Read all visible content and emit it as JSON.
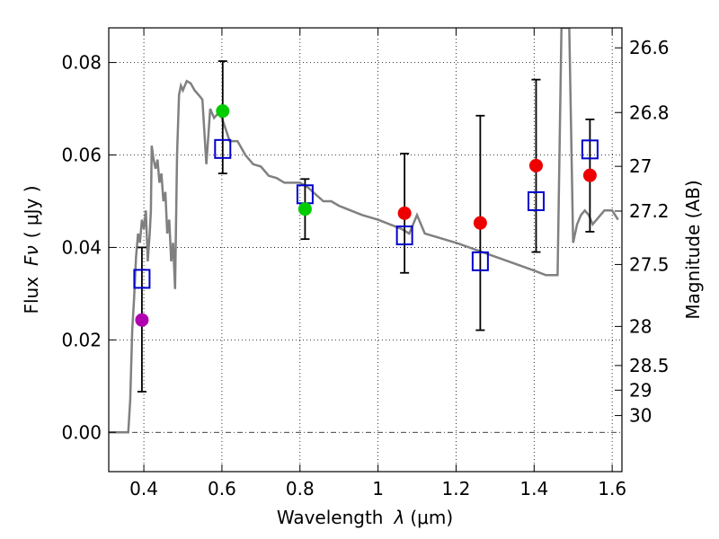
{
  "chart_data": {
    "type": "scatter",
    "xlabel_prefix": "Wavelength",
    "xlabel_lambda": "λ",
    "xlabel_unit": "(μm)",
    "ylabel_prefix": "Flux",
    "ylabel_symbol": "Fν",
    "ylabel_unit": "( μJy )",
    "y2label": "Magnitude (AB)",
    "xlim": [
      0.31,
      1.625
    ],
    "ylim": [
      -0.0085,
      0.0875
    ],
    "x_ticks": [
      {
        "value": 0.4,
        "label": "0.4"
      },
      {
        "value": 0.6,
        "label": "0.6"
      },
      {
        "value": 0.8,
        "label": "0.8"
      },
      {
        "value": 1.0,
        "label": "1"
      },
      {
        "value": 1.2,
        "label": "1.2"
      },
      {
        "value": 1.4,
        "label": "1.4"
      },
      {
        "value": 1.6,
        "label": "1.6"
      }
    ],
    "y_ticks": [
      {
        "value": 0.0,
        "label": "0.00"
      },
      {
        "value": 0.02,
        "label": "0.02"
      },
      {
        "value": 0.04,
        "label": "0.04"
      },
      {
        "value": 0.06,
        "label": "0.06"
      },
      {
        "value": 0.08,
        "label": "0.08"
      }
    ],
    "mag_ticks": [
      {
        "mag": 26.6,
        "label": "26.6"
      },
      {
        "mag": 26.8,
        "label": "26.8"
      },
      {
        "mag": 27.0,
        "label": "27"
      },
      {
        "mag": 27.2,
        "label": "27.2"
      },
      {
        "mag": 27.5,
        "label": "27.5"
      },
      {
        "mag": 28.0,
        "label": "28"
      },
      {
        "mag": 28.5,
        "label": "28.5"
      },
      {
        "mag": 29.0,
        "label": "29"
      },
      {
        "mag": 30.0,
        "label": "30"
      }
    ],
    "colors": {
      "sed": "#808080",
      "model": "#0000cc",
      "purple": "#b000b0",
      "green": "#00cc00",
      "red": "#ee0000"
    },
    "observed": [
      {
        "x": 0.395,
        "y": 0.0243,
        "err_low": 0.0088,
        "err_high": 0.04,
        "color": "purple"
      },
      {
        "x": 0.602,
        "y": 0.0695,
        "err_low": 0.056,
        "err_high": 0.0803,
        "color": "green"
      },
      {
        "x": 0.813,
        "y": 0.0483,
        "err_low": 0.0418,
        "err_high": 0.0548,
        "color": "green"
      },
      {
        "x": 1.068,
        "y": 0.0474,
        "err_low": 0.0345,
        "err_high": 0.0603,
        "color": "red"
      },
      {
        "x": 1.262,
        "y": 0.0453,
        "err_low": 0.0221,
        "err_high": 0.0685,
        "color": "red"
      },
      {
        "x": 1.405,
        "y": 0.0577,
        "err_low": 0.039,
        "err_high": 0.0763,
        "color": "red"
      },
      {
        "x": 1.543,
        "y": 0.0556,
        "err_low": 0.0434,
        "err_high": 0.0677,
        "color": "red"
      }
    ],
    "model_points": [
      {
        "x": 0.395,
        "y": 0.0332
      },
      {
        "x": 0.602,
        "y": 0.0613
      },
      {
        "x": 0.813,
        "y": 0.0515
      },
      {
        "x": 1.068,
        "y": 0.0426
      },
      {
        "x": 1.262,
        "y": 0.037
      },
      {
        "x": 1.405,
        "y": 0.05
      },
      {
        "x": 1.543,
        "y": 0.0612
      }
    ],
    "sed": {
      "x": [
        0.31,
        0.36,
        0.365,
        0.37,
        0.375,
        0.38,
        0.385,
        0.39,
        0.395,
        0.4,
        0.405,
        0.41,
        0.415,
        0.418,
        0.42,
        0.425,
        0.43,
        0.435,
        0.44,
        0.445,
        0.45,
        0.455,
        0.46,
        0.465,
        0.47,
        0.475,
        0.48,
        0.485,
        0.49,
        0.495,
        0.5,
        0.51,
        0.52,
        0.53,
        0.54,
        0.55,
        0.56,
        0.57,
        0.58,
        0.59,
        0.6,
        0.62,
        0.64,
        0.66,
        0.68,
        0.7,
        0.72,
        0.74,
        0.76,
        0.78,
        0.8,
        0.82,
        0.84,
        0.86,
        0.88,
        0.9,
        0.93,
        0.96,
        1.0,
        1.03,
        1.06,
        1.08,
        1.1,
        1.12,
        1.2,
        1.3,
        1.4,
        1.43,
        1.45,
        1.46,
        1.465,
        1.47,
        1.475,
        1.48,
        1.485,
        1.49,
        1.5,
        1.51,
        1.52,
        1.53,
        1.54,
        1.55,
        1.56,
        1.57,
        1.58,
        1.6,
        1.615
      ],
      "y": [
        0.0,
        0.0,
        0.007,
        0.022,
        0.029,
        0.038,
        0.043,
        0.041,
        0.046,
        0.044,
        0.048,
        0.037,
        0.043,
        0.048,
        0.062,
        0.059,
        0.057,
        0.059,
        0.054,
        0.056,
        0.05,
        0.052,
        0.043,
        0.046,
        0.037,
        0.041,
        0.031,
        0.06,
        0.073,
        0.075,
        0.074,
        0.076,
        0.0755,
        0.074,
        0.073,
        0.072,
        0.058,
        0.07,
        0.068,
        0.069,
        0.068,
        0.063,
        0.063,
        0.06,
        0.058,
        0.0575,
        0.0555,
        0.055,
        0.054,
        0.054,
        0.054,
        0.053,
        0.0515,
        0.05,
        0.05,
        0.049,
        0.048,
        0.047,
        0.046,
        0.045,
        0.044,
        0.043,
        0.047,
        0.043,
        0.041,
        0.038,
        0.035,
        0.034,
        0.034,
        0.034,
        0.06,
        0.0875,
        0.0875,
        0.0875,
        0.0875,
        0.0875,
        0.041,
        0.045,
        0.047,
        0.048,
        0.047,
        0.045,
        0.046,
        0.047,
        0.048,
        0.048,
        0.046
      ]
    }
  }
}
